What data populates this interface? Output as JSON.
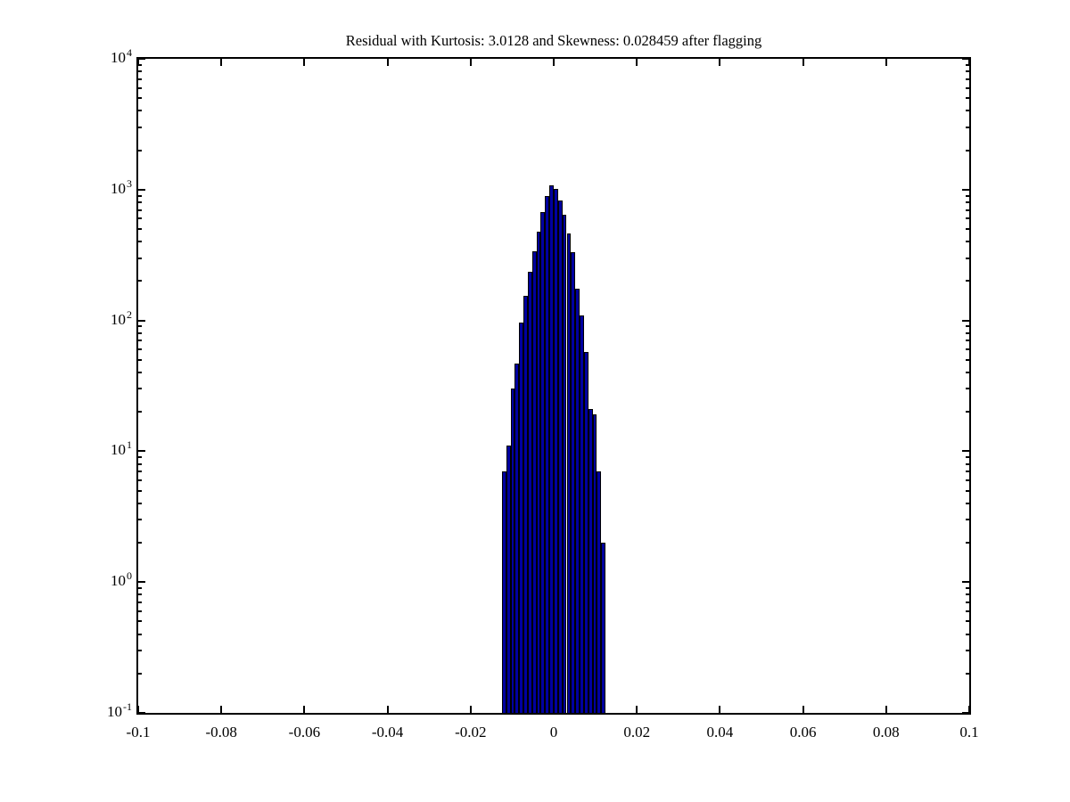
{
  "figure": {
    "background": "#ffffff"
  },
  "chart_data": {
    "type": "bar",
    "subtype": "histogram",
    "title": "Residual with Kurtosis: 3.0128 and Skewness: 0.028459 after flagging",
    "grid": false,
    "legend": false,
    "bar_fill": "#0000A0",
    "bar_edge": "#000000",
    "axis_color": "#000000",
    "x_axis": {
      "min": -0.1,
      "max": 0.1,
      "tick_values": [
        -0.1,
        -0.08,
        -0.06,
        -0.04,
        -0.02,
        0,
        0.02,
        0.04,
        0.06,
        0.08,
        0.1
      ],
      "tick_labels": [
        "-0.1",
        "-0.08",
        "-0.06",
        "-0.04",
        "-0.02",
        "0",
        "0.02",
        "0.04",
        "0.06",
        "0.08",
        "0.1"
      ]
    },
    "y_axis": {
      "scale": "log10",
      "min_exp": -1,
      "max_exp": 4,
      "tick_exponents": [
        4,
        3,
        2,
        1,
        0,
        -1
      ],
      "tick_labels": [
        {
          "base": "10",
          "exp": "4"
        },
        {
          "base": "10",
          "exp": "3"
        },
        {
          "base": "10",
          "exp": "2"
        },
        {
          "base": "10",
          "exp": "1"
        },
        {
          "base": "10",
          "exp": "0"
        },
        {
          "base": "10",
          "exp": "-1"
        }
      ],
      "minor_ticks_multipliers": [
        2,
        3,
        4,
        5,
        6,
        7,
        8,
        9
      ]
    },
    "bins": {
      "start": -0.01245,
      "width": 0.0010375,
      "count": 24
    },
    "counts": [
      7,
      11,
      30,
      47,
      96,
      153,
      234,
      336,
      475,
      670,
      890,
      1075,
      1010,
      830,
      640,
      460,
      330,
      175,
      110,
      57,
      21,
      19,
      7,
      2
    ]
  }
}
